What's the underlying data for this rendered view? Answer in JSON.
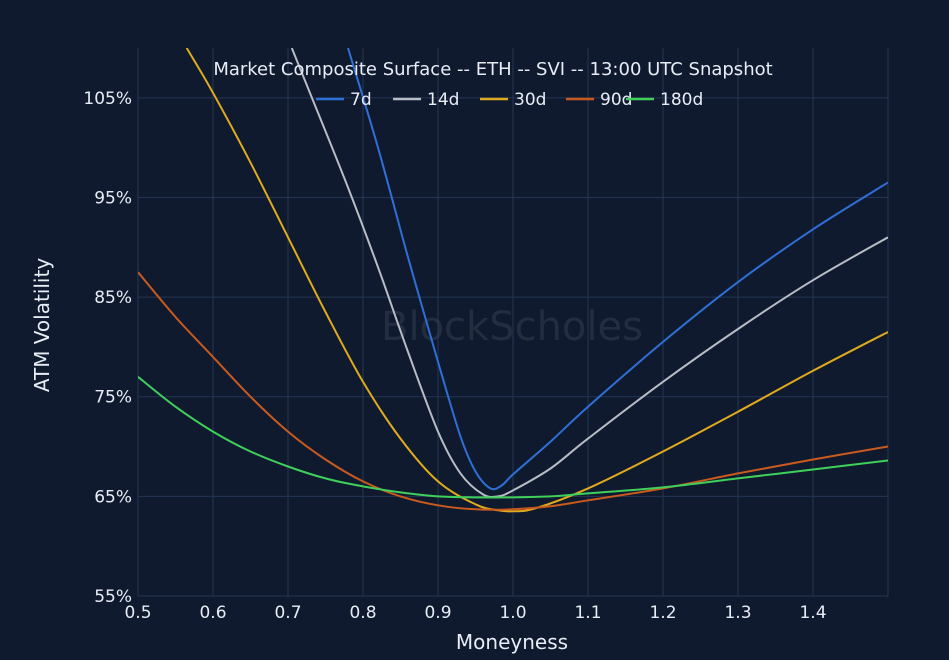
{
  "chart_data": {
    "type": "line",
    "title": "Market Composite Surface -- ETH -- SVI -- 13:00 UTC Snapshot",
    "xlabel": "Moneyness",
    "ylabel": "ATM Volatility",
    "xlim": [
      0.5,
      1.5
    ],
    "ylim": [
      55,
      110
    ],
    "xticks": [
      "0.5",
      "0.6",
      "0.7",
      "0.8",
      "0.9",
      "1.0",
      "1.1",
      "1.2",
      "1.3",
      "1.4"
    ],
    "xtick_values": [
      0.5,
      0.6,
      0.7,
      0.8,
      0.9,
      1.0,
      1.1,
      1.2,
      1.3,
      1.4
    ],
    "yticks": [
      "55%",
      "65%",
      "75%",
      "85%",
      "95%",
      "105%"
    ],
    "ytick_values": [
      55,
      65,
      75,
      85,
      95,
      105
    ],
    "grid": true,
    "legend_position": "top-center",
    "watermark": "BlockScholes",
    "series": [
      {
        "name": "7d",
        "color": "#2f6fd6",
        "x": [
          0.78,
          0.82,
          0.86,
          0.9,
          0.93,
          0.95,
          0.97,
          0.985,
          1.0,
          1.05,
          1.1,
          1.2,
          1.3,
          1.4,
          1.5
        ],
        "y": [
          110,
          100,
          89,
          78.5,
          71,
          67.5,
          65.8,
          66.1,
          67.2,
          70.5,
          74,
          80.5,
          86.5,
          91.8,
          96.5
        ]
      },
      {
        "name": "14d",
        "color": "#b8bcc4",
        "x": [
          0.705,
          0.74,
          0.78,
          0.82,
          0.86,
          0.9,
          0.93,
          0.96,
          0.98,
          1.0,
          1.05,
          1.1,
          1.2,
          1.3,
          1.4,
          1.5
        ],
        "y": [
          110,
          103.5,
          96,
          88,
          79.5,
          71.5,
          67.3,
          65.2,
          65,
          65.6,
          67.8,
          70.8,
          76.5,
          81.8,
          86.7,
          91
        ]
      },
      {
        "name": "30d",
        "color": "#e0aa1e",
        "x": [
          0.565,
          0.6,
          0.65,
          0.7,
          0.75,
          0.8,
          0.85,
          0.9,
          0.95,
          0.98,
          1.0,
          1.03,
          1.1,
          1.2,
          1.3,
          1.4,
          1.5
        ],
        "y": [
          110,
          105.5,
          98.5,
          91,
          83.5,
          76.5,
          70.8,
          66.5,
          64.2,
          63.6,
          63.5,
          63.8,
          65.8,
          69.5,
          73.5,
          77.6,
          81.5
        ]
      },
      {
        "name": "90d",
        "color": "#c95a1e",
        "x": [
          0.5,
          0.55,
          0.6,
          0.65,
          0.7,
          0.75,
          0.8,
          0.85,
          0.9,
          0.95,
          1.0,
          1.05,
          1.1,
          1.2,
          1.3,
          1.4,
          1.5
        ],
        "y": [
          87.5,
          83,
          79,
          75,
          71.5,
          68.7,
          66.5,
          65,
          64.1,
          63.7,
          63.7,
          64,
          64.6,
          65.8,
          67.3,
          68.7,
          70
        ]
      },
      {
        "name": "180d",
        "color": "#3fcf5a",
        "x": [
          0.5,
          0.55,
          0.6,
          0.65,
          0.7,
          0.75,
          0.8,
          0.85,
          0.9,
          0.95,
          1.0,
          1.05,
          1.1,
          1.2,
          1.3,
          1.4,
          1.5
        ],
        "y": [
          77,
          74,
          71.5,
          69.5,
          68,
          66.8,
          66,
          65.4,
          65,
          64.9,
          64.9,
          65,
          65.3,
          65.9,
          66.8,
          67.7,
          68.6
        ]
      }
    ]
  }
}
